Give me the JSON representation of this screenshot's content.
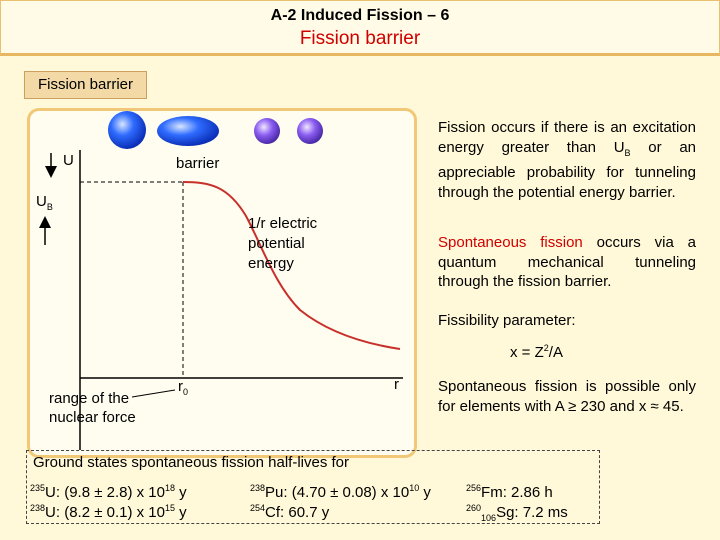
{
  "header": {
    "title": "A-2 Induced Fission – 6",
    "subtitle": "Fission barrier"
  },
  "section_label": "Fission barrier",
  "diagram": {
    "u_label": "U",
    "ub_main": "U",
    "ub_sub": "B",
    "barrier_label": "barrier",
    "potential_line1": "1/r electric",
    "potential_line2": "potential",
    "potential_line3": "energy",
    "range_line1": "range of the",
    "range_line2": "nuclear force",
    "r0_main": "r",
    "r0_sub": "0",
    "r_label": "r",
    "colors": {
      "nucleus_blue": "#1e5fff",
      "fragment_violet": "#8a5cf0",
      "curve_red": "#c8302b"
    }
  },
  "text": {
    "p1_a": "Fission occurs if there is an excitation energy greater than U",
    "p1_sub": "B",
    "p1_b": " or an appreciable probability for tunneling through the potential energy barrier.",
    "p2_red": "Spontaneous fission",
    "p2_rest": " occurs via a quantum mechanical tunneling through the fission barrier.",
    "p3": "Fissibility parameter:",
    "p4_a": "x = Z",
    "p4_sup": "2",
    "p4_b": "/A",
    "p5": "Spontaneous fission is possible only for elements with A ≥ 230 and x ≈ 45."
  },
  "half_lives": {
    "title": "Ground states spontaneous fission half-lives for",
    "u235_mass": "235",
    "u235_sym": "U",
    "u235_val": ": (9.8 ± 2.8) x 10",
    "u235_exp": "18",
    "u235_unit": " y",
    "u238_mass": "238",
    "u238_sym": "U",
    "u238_val": ": (8.2 ± 0.1) x 10",
    "u238_exp": "15",
    "u238_unit": " y",
    "pu238_mass": "238",
    "pu238_sym": "Pu",
    "pu238_val": ": (4.70 ± 0.08) x 10",
    "pu238_exp": "10",
    "pu238_unit": " y",
    "cf254_mass": "254",
    "cf254_sym": "Cf",
    "cf254_val": ": 60.7 y",
    "fm256_mass": "256",
    "fm256_sym": "Fm",
    "fm256_val": ": 2.86 h",
    "sg260_mass": "260",
    "sg260_z": "106",
    "sg260_sym": "Sg",
    "sg260_val": ": 7.2 ms"
  }
}
